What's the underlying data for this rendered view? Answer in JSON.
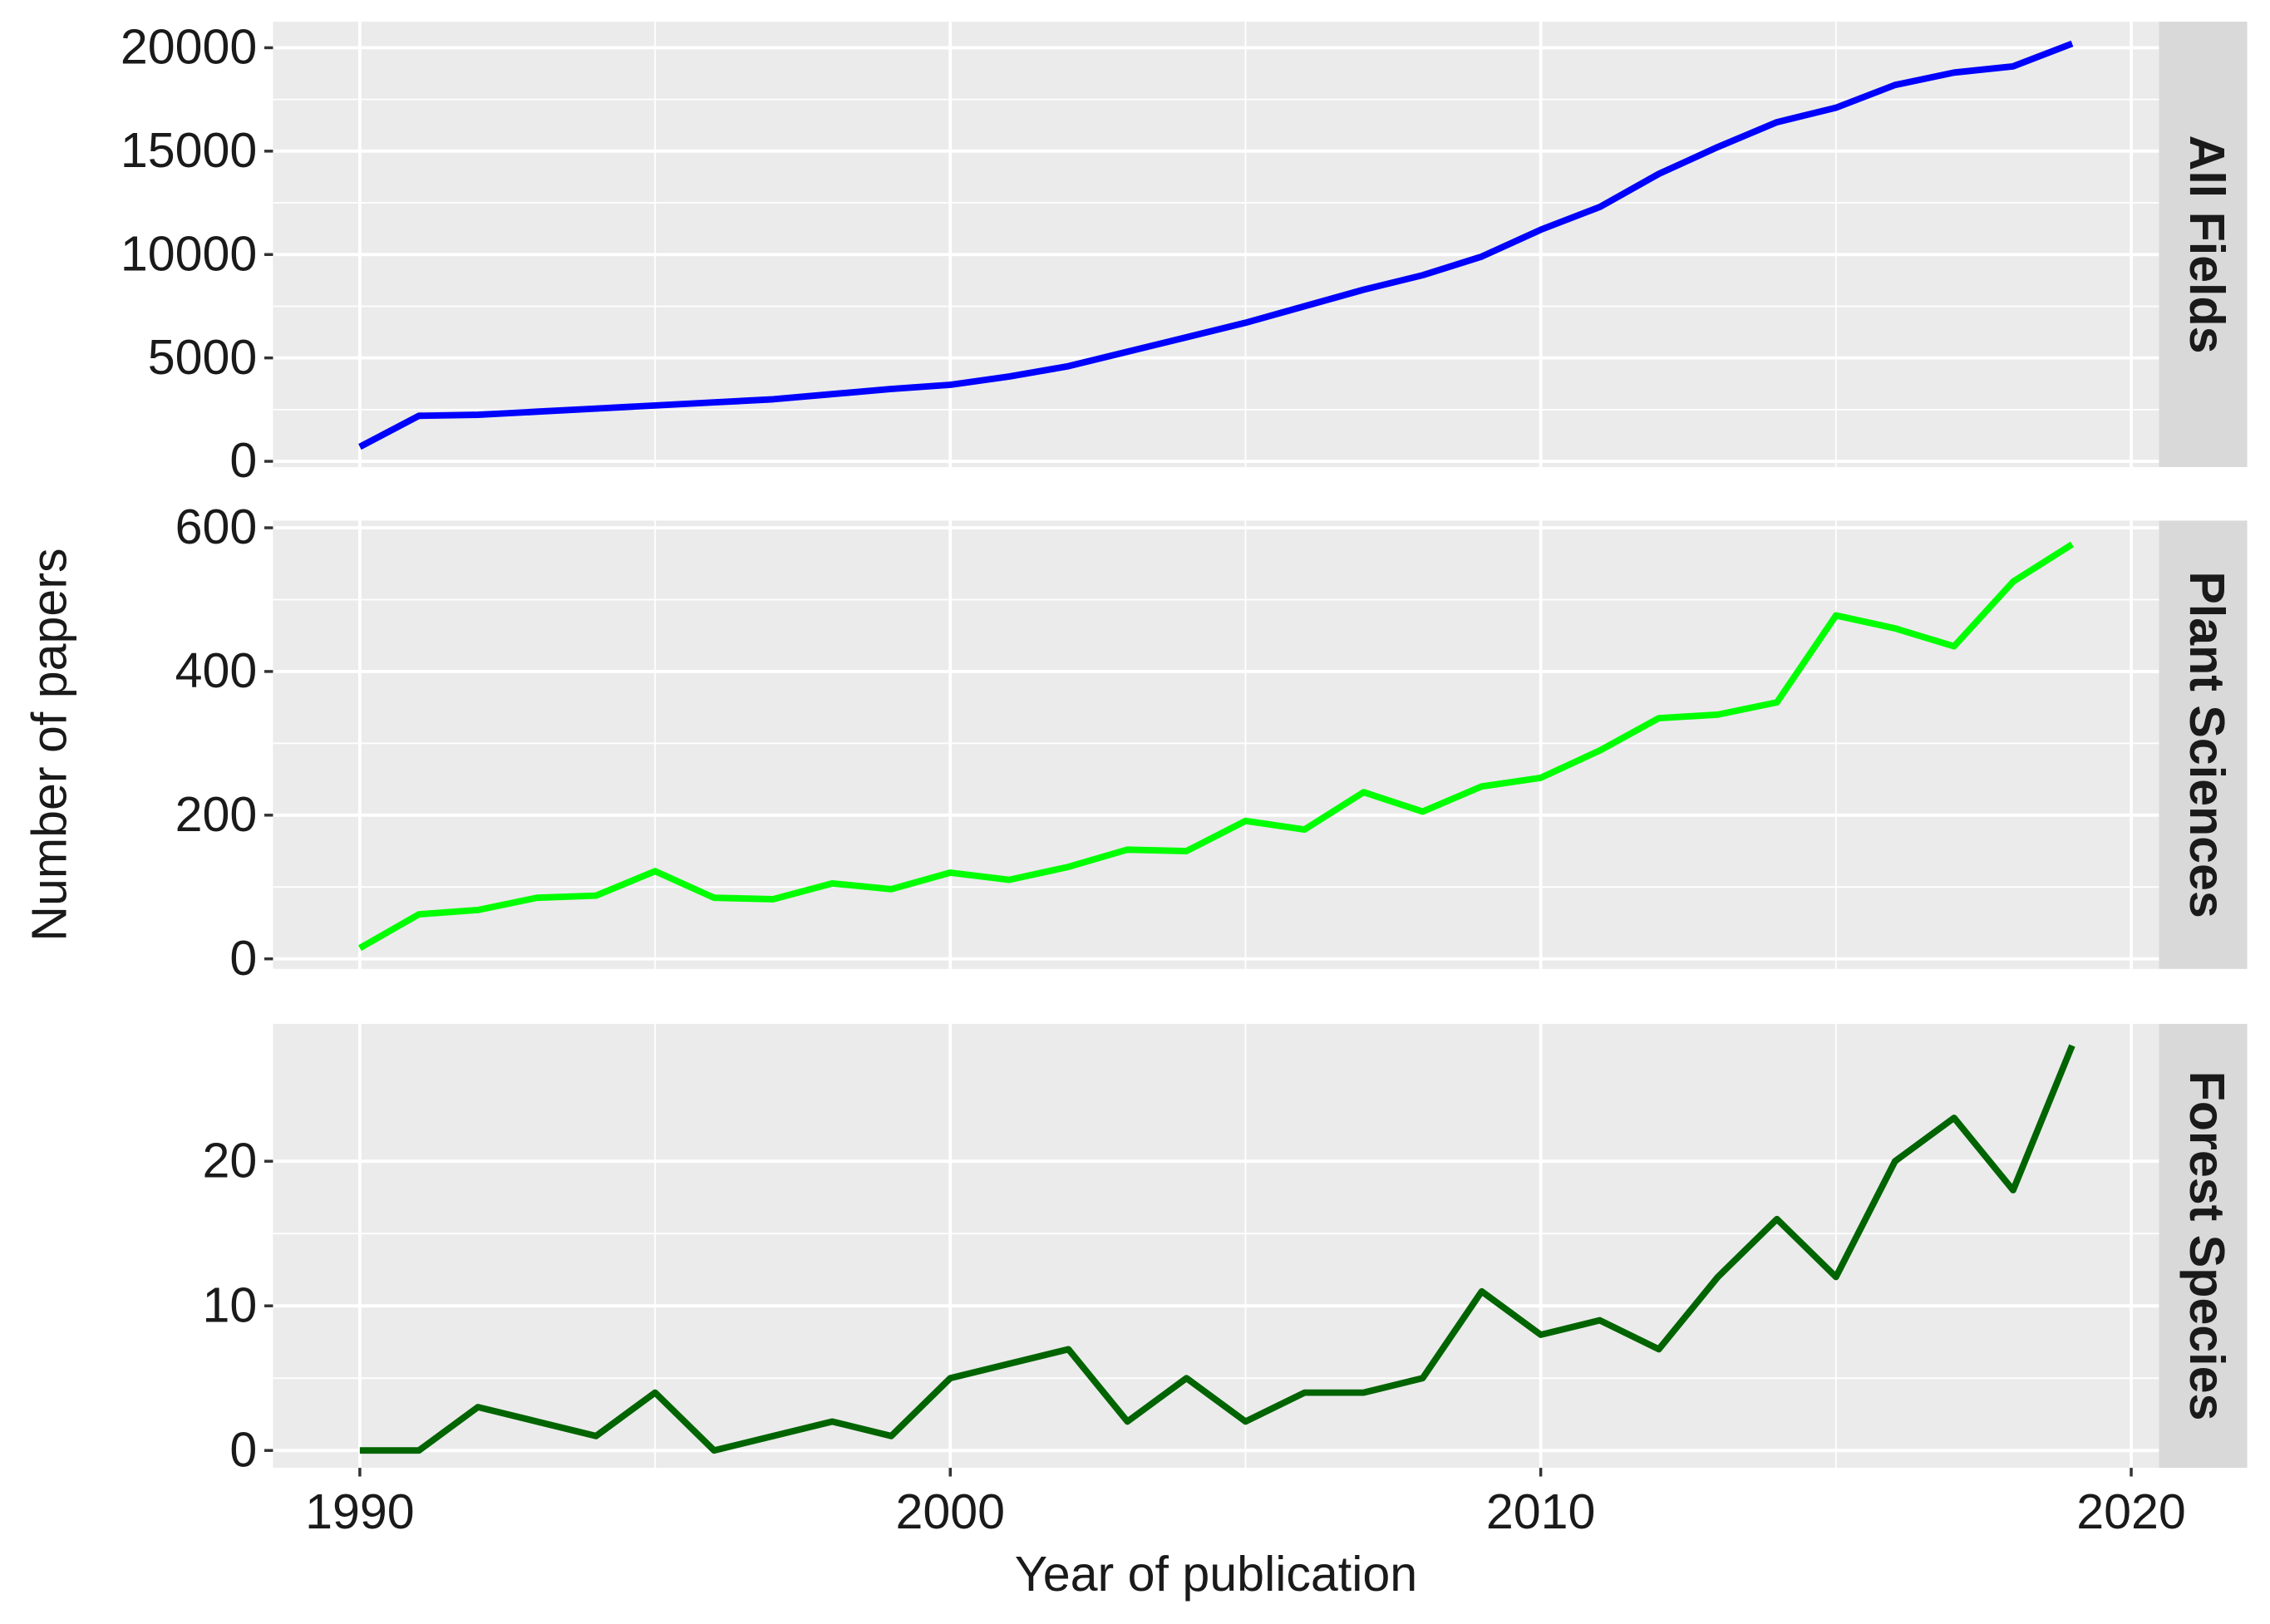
{
  "chart_data": [
    {
      "type": "line",
      "facet": "All Fields",
      "color": "#0000ff",
      "grid": true,
      "x": [
        1990,
        1991,
        1992,
        1993,
        1994,
        1995,
        1996,
        1997,
        1998,
        1999,
        2000,
        2001,
        2002,
        2003,
        2004,
        2005,
        2006,
        2007,
        2008,
        2009,
        2010,
        2011,
        2012,
        2013,
        2014,
        2015,
        2016,
        2017,
        2018,
        2019
      ],
      "values": [
        700,
        2200,
        2250,
        2400,
        2550,
        2700,
        2850,
        3000,
        3250,
        3500,
        3700,
        4100,
        4600,
        5300,
        6000,
        6700,
        7500,
        8300,
        9000,
        9900,
        11200,
        12300,
        13900,
        15200,
        16400,
        17100,
        18200,
        18800,
        19100,
        20200
      ],
      "xlim": [
        1988.53,
        2020.47
      ],
      "xticks": [
        1990,
        2000,
        2010,
        2020
      ],
      "ylim": [
        -280,
        21260
      ],
      "yticks": [
        0,
        5000,
        10000,
        15000,
        20000
      ]
    },
    {
      "type": "line",
      "facet": "Plant Sciences",
      "color": "#00ff00",
      "grid": true,
      "y_label": "Number of papers",
      "x": [
        1990,
        1991,
        1992,
        1993,
        1994,
        1995,
        1996,
        1997,
        1998,
        1999,
        2000,
        2001,
        2002,
        2003,
        2004,
        2005,
        2006,
        2007,
        2008,
        2009,
        2010,
        2011,
        2012,
        2013,
        2014,
        2015,
        2016,
        2017,
        2018,
        2019
      ],
      "values": [
        15,
        62,
        68,
        85,
        88,
        122,
        85,
        83,
        105,
        97,
        120,
        110,
        128,
        152,
        150,
        192,
        180,
        232,
        205,
        240,
        252,
        290,
        335,
        340,
        357,
        478,
        460,
        435,
        525,
        577
      ],
      "xlim": [
        1988.53,
        2020.47
      ],
      "xticks": [
        1990,
        2000,
        2010,
        2020
      ],
      "ylim": [
        -14,
        610
      ],
      "yticks": [
        0,
        200,
        400,
        600
      ]
    },
    {
      "type": "line",
      "facet": "Forest Species",
      "color": "#006400",
      "grid": true,
      "x_label": "Year of publication",
      "x": [
        1990,
        1991,
        1992,
        1993,
        1994,
        1995,
        1996,
        1997,
        1998,
        1999,
        2000,
        2001,
        2002,
        2003,
        2004,
        2005,
        2006,
        2007,
        2008,
        2009,
        2010,
        2011,
        2012,
        2013,
        2014,
        2015,
        2016,
        2017,
        2018,
        2019
      ],
      "values": [
        0,
        0,
        3,
        2,
        1,
        4,
        0,
        1,
        2,
        1,
        5,
        6,
        7,
        2,
        5,
        2,
        4,
        4,
        5,
        11,
        8,
        9,
        7,
        12,
        16,
        12,
        20,
        23,
        18,
        28
      ],
      "xlim": [
        1988.53,
        2020.47
      ],
      "xticks": [
        1990,
        2000,
        2010,
        2020
      ],
      "ylim": [
        -1.2,
        29.5
      ],
      "yticks": [
        0,
        10,
        20
      ]
    }
  ]
}
